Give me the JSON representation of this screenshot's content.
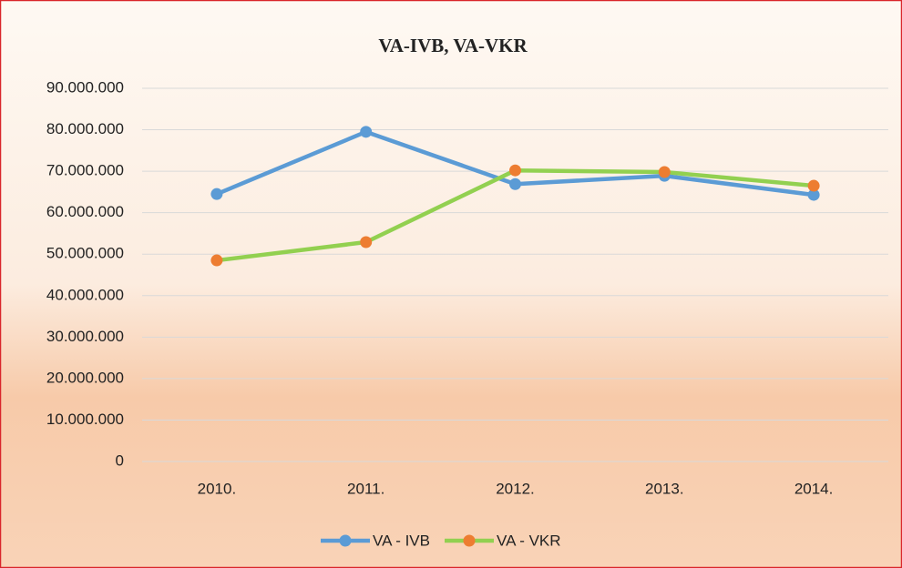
{
  "chart_data": {
    "type": "line",
    "title": "VA-IVB, VA-VKR",
    "categories": [
      "2010.",
      "2011.",
      "2012.",
      "2013.",
      "2014."
    ],
    "series": [
      {
        "name": "VA - IVB",
        "color": "#5b9bd5",
        "marker_color": "#5b9bd5",
        "values": [
          64500000,
          79500000,
          66900000,
          68900000,
          64300000
        ]
      },
      {
        "name": "VA - VKR",
        "color": "#92d050",
        "marker_color": "#ed7d31",
        "values": [
          48500000,
          52900000,
          70200000,
          69800000,
          66500000
        ]
      }
    ],
    "ylim": [
      0,
      90000000
    ],
    "yticks": [
      0,
      {
        "value": 10000000,
        "label": "10.000.000"
      },
      {
        "value": 20000000,
        "label": "20.000.000"
      },
      {
        "value": 30000000,
        "label": "30.000.000"
      },
      {
        "value": 40000000,
        "label": "40.000.000"
      },
      {
        "value": 50000000,
        "label": "50.000.000"
      },
      {
        "value": 60000000,
        "label": "60.000.000"
      },
      {
        "value": 70000000,
        "label": "70.000.000"
      },
      {
        "value": 80000000,
        "label": "80.000.000"
      },
      {
        "value": 90000000,
        "label": "90.000.000"
      }
    ],
    "grid": true,
    "legend": "bottom"
  }
}
